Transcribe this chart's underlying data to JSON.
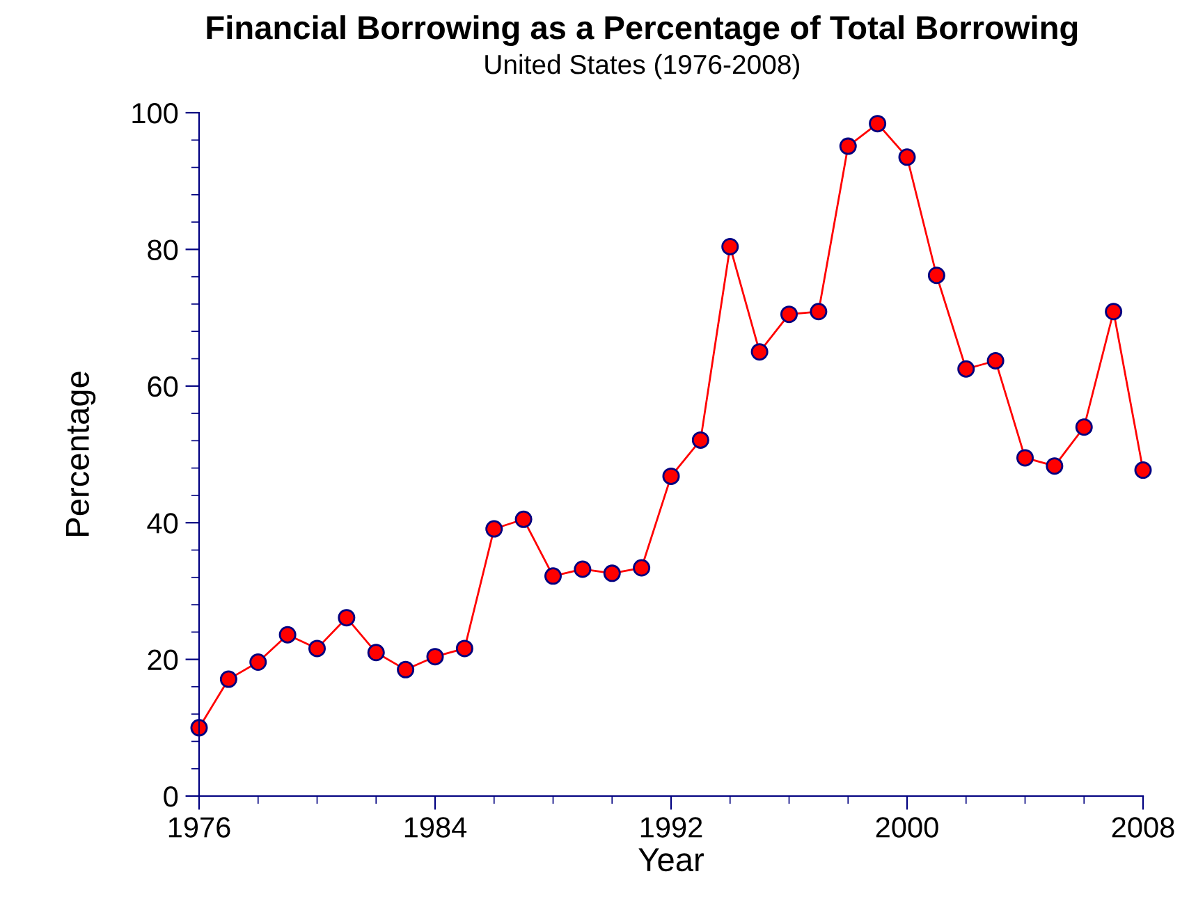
{
  "chart_data": {
    "type": "line",
    "title": "Financial Borrowing as a Percentage of Total Borrowing",
    "subtitle": "United States (1976-2008)",
    "xlabel": "Year",
    "ylabel": "Percentage",
    "x": [
      1976,
      1977,
      1978,
      1979,
      1980,
      1981,
      1982,
      1983,
      1984,
      1985,
      1986,
      1987,
      1988,
      1989,
      1990,
      1991,
      1992,
      1993,
      1994,
      1995,
      1996,
      1997,
      1998,
      1999,
      2000,
      2001,
      2002,
      2003,
      2004,
      2005,
      2006,
      2007,
      2008
    ],
    "series": [
      {
        "color": "#ff0000",
        "values": [
          10.0,
          17.1,
          19.6,
          23.6,
          21.6,
          26.1,
          21.0,
          18.5,
          20.4,
          21.6,
          39.1,
          40.5,
          32.2,
          33.2,
          32.6,
          33.4,
          46.8,
          52.1,
          80.4,
          65.0,
          70.5,
          70.9,
          95.1,
          98.4,
          93.5,
          76.2,
          62.5,
          63.7,
          49.5,
          48.3,
          54.0,
          70.9,
          47.7
        ]
      }
    ],
    "xlim": [
      1976,
      2008
    ],
    "xticks": [
      1976,
      1984,
      1992,
      2000,
      2008
    ],
    "ylim": [
      0,
      100
    ],
    "yticks": [
      0,
      20,
      40,
      60,
      80,
      100
    ],
    "grid": false,
    "legend": false,
    "marker": "circle",
    "line_style": "solid"
  }
}
